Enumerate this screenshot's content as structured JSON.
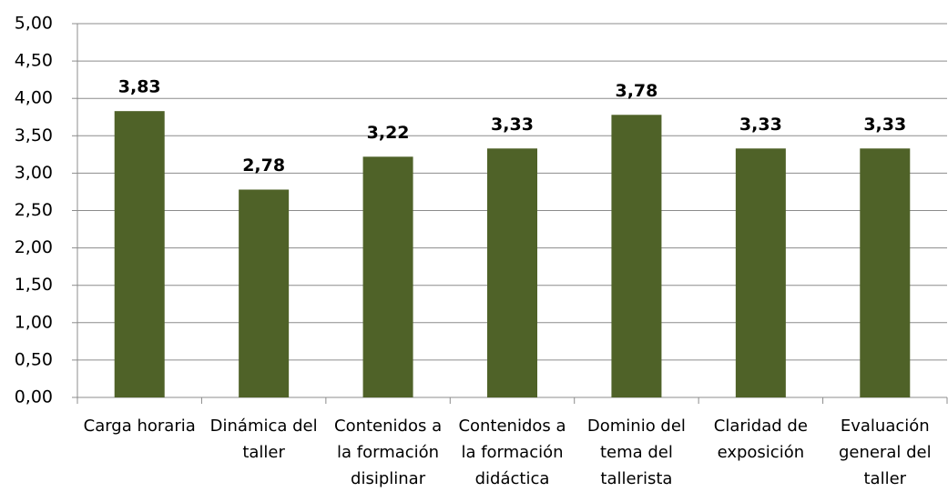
{
  "chart_data": {
    "type": "bar",
    "categories": [
      "Carga horaria",
      "Dinámica del taller",
      "Contenidos a la formación disiplinar",
      "Contenidos a la formación didáctica",
      "Dominio del tema del tallerista",
      "Claridad de exposición",
      "Evaluación general del taller"
    ],
    "values": [
      3.83,
      2.78,
      3.22,
      3.33,
      3.78,
      3.33,
      3.33
    ],
    "value_labels": [
      "3,83",
      "2,78",
      "3,22",
      "3,33",
      "3,78",
      "3,33",
      "3,33"
    ],
    "color": "#4f6228",
    "ylim": [
      0,
      5
    ],
    "yticks": [
      {
        "value": 0,
        "label": "0,00"
      },
      {
        "value": 0.5,
        "label": "0,50"
      },
      {
        "value": 1,
        "label": "1,00"
      },
      {
        "value": 1.5,
        "label": "1,50"
      },
      {
        "value": 2,
        "label": "2,00"
      },
      {
        "value": 2.5,
        "label": "2,50"
      },
      {
        "value": 3,
        "label": "3,00"
      },
      {
        "value": 3.5,
        "label": "3,50"
      },
      {
        "value": 4,
        "label": "4,00"
      },
      {
        "value": 4.5,
        "label": "4,50"
      },
      {
        "value": 5,
        "label": "5,00"
      }
    ],
    "grid": true
  }
}
